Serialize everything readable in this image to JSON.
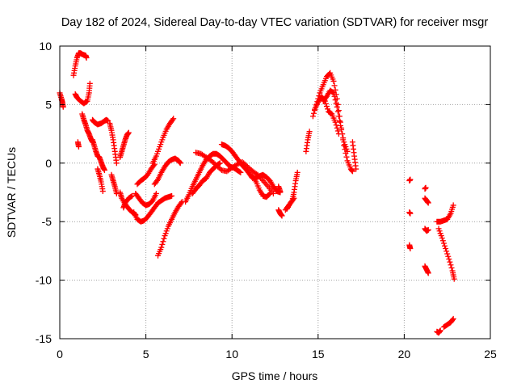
{
  "chart_data": {
    "type": "scatter",
    "title": "Day 182 of 2024, Sidereal Day-to-day VTEC variation (SDTVAR) for receiver msgr",
    "xlabel": "GPS time / hours",
    "ylabel": "SDTVAR / TECUs",
    "xlim": [
      0,
      25
    ],
    "ylim": [
      -15,
      10
    ],
    "xticks": [
      "0",
      "5",
      "10",
      "15",
      "20",
      "25"
    ],
    "yticks": [
      "10",
      "5",
      "0",
      "-5",
      "-10",
      "-15"
    ],
    "grid": true,
    "marker": "+",
    "color": "#ff0000",
    "tracks": [
      {
        "x": [
          0.0,
          0.1,
          0.15,
          0.2
        ],
        "y": [
          6.0,
          5.5,
          5.2,
          4.8
        ]
      },
      {
        "x": [
          0.8,
          0.9,
          1.0,
          1.1,
          1.2,
          1.3,
          1.5,
          1.55
        ],
        "y": [
          7.5,
          8.3,
          9.0,
          9.4,
          9.4,
          9.3,
          9.2,
          9.0
        ]
      },
      {
        "x": [
          0.9,
          1.0,
          1.2,
          1.4,
          1.6,
          1.7,
          1.75
        ],
        "y": [
          5.9,
          5.6,
          5.3,
          5.1,
          5.3,
          6.0,
          6.8
        ]
      },
      {
        "x": [
          1.3,
          1.4,
          1.5,
          1.6,
          1.7,
          1.8,
          1.9
        ],
        "y": [
          4.2,
          3.7,
          3.3,
          2.8,
          2.5,
          2.1,
          1.8
        ]
      },
      {
        "x": [
          1.05,
          1.1
        ],
        "y": [
          1.8,
          1.4
        ]
      },
      {
        "x": [
          1.9,
          2.0,
          2.2,
          2.4,
          2.6,
          2.7,
          2.8
        ],
        "y": [
          3.7,
          3.5,
          3.3,
          3.4,
          3.6,
          3.7,
          3.6
        ]
      },
      {
        "x": [
          1.9,
          2.0,
          2.1,
          2.2,
          2.3,
          2.4,
          2.5,
          2.6
        ],
        "y": [
          2.0,
          1.5,
          1.0,
          0.6,
          0.5,
          0.1,
          -0.3,
          -0.6
        ]
      },
      {
        "x": [
          2.2,
          2.3,
          2.4,
          2.5
        ],
        "y": [
          -0.5,
          -1.0,
          -1.6,
          -2.4
        ]
      },
      {
        "x": [
          2.9,
          3.0,
          3.1,
          3.2,
          3.3
        ],
        "y": [
          3.4,
          2.8,
          2.0,
          1.0,
          0.0
        ]
      },
      {
        "x": [
          3.0,
          3.1,
          3.2,
          3.3
        ],
        "y": [
          -1.0,
          -1.5,
          -2.0,
          -2.6
        ]
      },
      {
        "x": [
          3.5,
          3.6,
          3.7,
          3.8,
          3.9,
          4.0
        ],
        "y": [
          0.5,
          1.0,
          1.5,
          2.0,
          2.4,
          2.6
        ]
      },
      {
        "x": [
          3.5,
          3.6,
          3.8,
          4.0,
          4.2,
          4.4
        ],
        "y": [
          -2.5,
          -3.0,
          -3.5,
          -3.9,
          -4.2,
          -4.4
        ]
      },
      {
        "x": [
          3.7,
          3.8,
          4.0,
          4.2
        ],
        "y": [
          -3.8,
          -3.4,
          -3.0,
          -2.8
        ]
      },
      {
        "x": [
          4.3,
          4.5,
          4.7,
          4.9,
          5.1,
          5.3,
          5.5,
          5.7,
          5.9,
          6.1,
          6.3,
          6.5
        ],
        "y": [
          -4.2,
          -4.8,
          -5.0,
          -4.9,
          -4.6,
          -4.2,
          -3.8,
          -3.4,
          -3.2,
          -3.0,
          -2.9,
          -2.8
        ]
      },
      {
        "x": [
          4.5,
          4.7,
          4.9,
          5.1,
          5.3,
          5.5
        ],
        "y": [
          -1.8,
          -1.5,
          -1.3,
          -1.0,
          -0.5,
          -0.1
        ]
      },
      {
        "x": [
          4.4,
          4.6,
          4.8,
          5.0,
          5.2,
          5.4,
          5.6
        ],
        "y": [
          -2.6,
          -3.0,
          -3.4,
          -3.6,
          -3.5,
          -3.2,
          -2.6
        ]
      },
      {
        "x": [
          5.4,
          5.6,
          5.8,
          6.0,
          6.2,
          6.4,
          6.6
        ],
        "y": [
          0.0,
          0.6,
          1.4,
          2.2,
          2.9,
          3.4,
          3.8
        ]
      },
      {
        "x": [
          5.5,
          5.7,
          5.9,
          6.1,
          6.3,
          6.5,
          6.7,
          6.9,
          7.0
        ],
        "y": [
          -1.8,
          -1.4,
          -0.8,
          -0.3,
          0.1,
          0.3,
          0.4,
          0.2,
          0.0
        ]
      },
      {
        "x": [
          5.7,
          5.9,
          6.1,
          6.3,
          6.5,
          6.7,
          6.9,
          7.1
        ],
        "y": [
          -7.9,
          -7.2,
          -6.2,
          -5.4,
          -4.8,
          -4.2,
          -3.7,
          -3.3
        ]
      },
      {
        "x": [
          7.3,
          7.5,
          7.7,
          7.9,
          8.1,
          8.3,
          8.5,
          8.7,
          8.9,
          9.1,
          9.3,
          9.5,
          9.7,
          9.9,
          10.1,
          10.3,
          10.5
        ],
        "y": [
          -3.3,
          -2.7,
          -2.0,
          -1.4,
          -0.8,
          -0.2,
          0.3,
          0.6,
          0.8,
          0.8,
          0.6,
          0.3,
          0.0,
          -0.3,
          -0.4,
          -0.6,
          -0.8
        ]
      },
      {
        "x": [
          7.7,
          7.9,
          8.1,
          8.3,
          8.5,
          8.7,
          8.9,
          9.1,
          9.3
        ],
        "y": [
          -2.6,
          -2.2,
          -1.9,
          -1.5,
          -1.3,
          -0.8,
          -0.5,
          -0.2,
          0.0
        ]
      },
      {
        "x": [
          7.9,
          8.2,
          8.5,
          8.8,
          9.1,
          9.4,
          9.7,
          10.0,
          10.3,
          10.6,
          10.9,
          11.2,
          11.5,
          11.8,
          12.1,
          12.4
        ],
        "y": [
          0.9,
          0.8,
          0.5,
          0.2,
          -0.2,
          -0.6,
          -0.7,
          -0.4,
          -0.1,
          0.1,
          -0.3,
          -0.7,
          -1.0,
          -1.5,
          -2.0,
          -2.6
        ]
      },
      {
        "x": [
          9.4,
          9.6,
          9.8,
          10.0,
          10.2,
          10.4,
          10.6,
          10.8,
          11.0,
          11.2
        ],
        "y": [
          1.6,
          1.5,
          1.3,
          1.0,
          0.6,
          0.2,
          -0.2,
          -0.5,
          -0.9,
          -1.3
        ]
      },
      {
        "x": [
          11.2,
          11.4,
          11.6,
          11.8,
          12.0,
          12.2
        ],
        "y": [
          -1.1,
          -1.6,
          -2.3,
          -2.8,
          -2.9,
          -2.6
        ]
      },
      {
        "x": [
          11.4,
          11.6,
          11.8,
          12.0,
          12.2,
          12.4,
          12.6,
          12.8
        ],
        "y": [
          -1.2,
          -1.1,
          -1.0,
          -1.2,
          -1.5,
          -2.0,
          -2.4,
          -2.5
        ]
      },
      {
        "x": [
          12.7,
          12.8
        ],
        "y": [
          -2.0,
          -2.4
        ]
      },
      {
        "x": [
          12.7,
          12.8,
          12.9
        ],
        "y": [
          -4.0,
          -4.3,
          -4.5
        ]
      },
      {
        "x": [
          13.1,
          13.3,
          13.5,
          13.6,
          13.7,
          13.8
        ],
        "y": [
          -4.0,
          -3.6,
          -3.2,
          -2.5,
          -1.5,
          -0.8
        ]
      },
      {
        "x": [
          13.2,
          13.4,
          13.6
        ],
        "y": [
          -3.9,
          -3.4,
          -3.0
        ]
      },
      {
        "x": [
          14.3,
          14.4,
          14.5
        ],
        "y": [
          1.0,
          2.0,
          2.7
        ]
      },
      {
        "x": [
          14.7,
          14.9,
          15.1,
          15.3,
          15.5,
          15.7,
          15.9,
          16.1,
          16.3,
          16.5,
          16.7,
          16.9,
          17.0
        ],
        "y": [
          4.0,
          5.0,
          6.0,
          6.7,
          7.4,
          7.7,
          7.0,
          5.5,
          3.5,
          1.5,
          0.2,
          -0.5,
          -0.7
        ]
      },
      {
        "x": [
          14.8,
          15.0,
          15.2,
          15.4,
          15.6,
          15.8,
          16.0,
          16.2
        ],
        "y": [
          4.6,
          5.2,
          5.7,
          5.3,
          4.4,
          4.2,
          3.5,
          2.5
        ]
      },
      {
        "x": [
          15.3,
          15.5,
          15.7,
          15.9,
          16.1,
          16.3,
          16.5,
          16.7
        ],
        "y": [
          5.3,
          5.7,
          6.2,
          6.0,
          4.8,
          3.2,
          1.8,
          1.0
        ]
      },
      {
        "x": [
          17.0,
          17.1,
          17.2
        ],
        "y": [
          1.8,
          0.6,
          -0.5
        ]
      },
      {
        "x": [
          20.3,
          20.35
        ],
        "y": [
          -1.5,
          -1.4
        ]
      },
      {
        "x": [
          20.3,
          20.35
        ],
        "y": [
          -4.2,
          -4.3
        ]
      },
      {
        "x": [
          20.3,
          20.35
        ],
        "y": [
          -7.0,
          -7.3
        ]
      },
      {
        "x": [
          21.2,
          21.25
        ],
        "y": [
          -2.2,
          -2.1
        ]
      },
      {
        "x": [
          21.2,
          21.3,
          21.4
        ],
        "y": [
          -3.0,
          -3.2,
          -3.4
        ]
      },
      {
        "x": [
          21.2,
          21.3,
          21.4
        ],
        "y": [
          -5.6,
          -5.8,
          -5.7
        ]
      },
      {
        "x": [
          21.2,
          21.3,
          21.4
        ],
        "y": [
          -8.8,
          -9.1,
          -9.4
        ]
      },
      {
        "x": [
          21.9,
          22.1,
          22.3,
          22.5,
          22.7,
          22.85
        ],
        "y": [
          -5.0,
          -5.0,
          -4.9,
          -4.8,
          -4.3,
          -3.6
        ]
      },
      {
        "x": [
          22.0,
          22.2,
          22.4,
          22.6,
          22.8,
          22.9
        ],
        "y": [
          -5.6,
          -6.4,
          -7.3,
          -8.2,
          -9.2,
          -9.9
        ]
      },
      {
        "x": [
          21.9,
          22.0,
          22.1
        ],
        "y": [
          -14.4,
          -14.5,
          -14.3
        ]
      },
      {
        "x": [
          22.3,
          22.5,
          22.7,
          22.85
        ],
        "y": [
          -14.0,
          -13.8,
          -13.6,
          -13.3
        ]
      }
    ]
  }
}
